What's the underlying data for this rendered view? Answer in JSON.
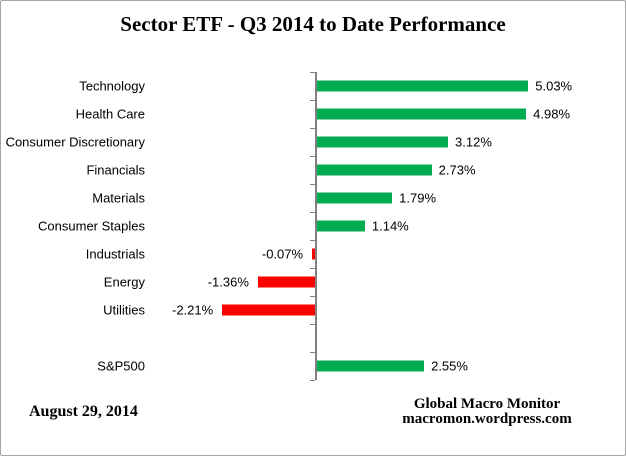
{
  "title": "Sector ETF - Q3 2014 to Date Performance",
  "footer": {
    "date": "August 29,  2014",
    "attribution_line1": "Global Macro Monitor",
    "attribution_line2": "macromon.wordpress.com"
  },
  "colors": {
    "positive": "#00AC4F",
    "negative": "#FF0000",
    "axis": "#808080",
    "text": "#000000",
    "border": "#A6A6A6"
  },
  "chart_data": {
    "type": "bar",
    "orientation": "horizontal",
    "title": "Sector ETF - Q3 2014 to Date Performance",
    "categories": [
      "Technology",
      "Health Care",
      "Consumer Discretionary",
      "Financials",
      "Materials",
      "Consumer Staples",
      "Industrials",
      "Energy",
      "Utilities",
      "",
      "S&P500"
    ],
    "values": [
      5.03,
      4.98,
      3.12,
      2.73,
      1.79,
      1.14,
      -0.07,
      -1.36,
      -2.21,
      null,
      2.55
    ],
    "value_labels": [
      "5.03%",
      "4.98%",
      "3.12%",
      "2.73%",
      "1.79%",
      "1.14%",
      "-0.07%",
      "-1.36%",
      "-2.21%",
      "",
      "2.55%"
    ],
    "unit": "%",
    "xlabel": "",
    "ylabel": "",
    "xlim": [
      -4,
      6
    ],
    "grid": false,
    "legend": false,
    "positive_color": "#00AC4F",
    "negative_color": "#FF0000"
  }
}
